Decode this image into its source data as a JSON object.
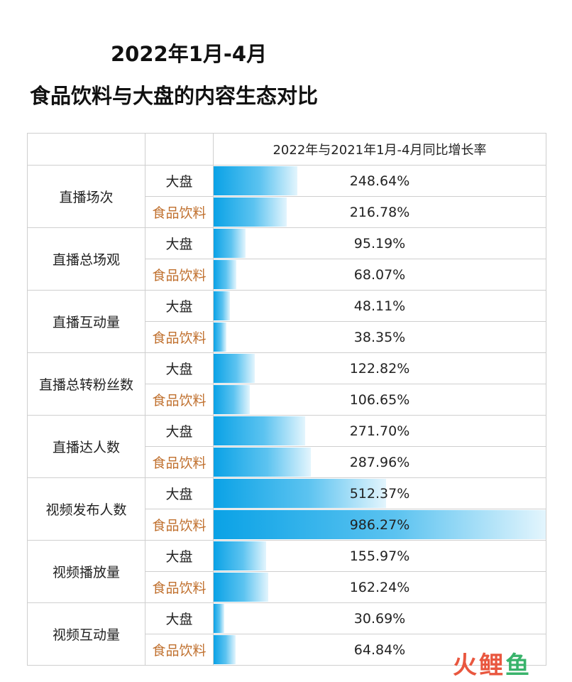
{
  "title_line1": "2022年1月-4月",
  "title_line2": "食品饮料与大盘的内容生态对比",
  "header": {
    "col1": "",
    "col2": "",
    "col3": "2022年与2021年1月-4月同比增长率"
  },
  "groups": [
    "大盘",
    "食品饮料"
  ],
  "colors": {
    "bar_start": "#0aa2e6",
    "bar_end": "#e3f5fd",
    "food_label": "#c0702e"
  },
  "chart_data": {
    "type": "table",
    "title": "2022年1月-4月 食品饮料与大盘的内容生态对比",
    "value_header": "2022年与2021年1月-4月同比增长率",
    "series_names": [
      "大盘",
      "食品饮料"
    ],
    "metrics": [
      {
        "name": "直播场次",
        "rows": [
          {
            "group": "大盘",
            "value": 248.64,
            "label": "248.64%"
          },
          {
            "group": "食品饮料",
            "value": 216.78,
            "label": "216.78%"
          }
        ]
      },
      {
        "name": "直播总场观",
        "rows": [
          {
            "group": "大盘",
            "value": 95.19,
            "label": "95.19%"
          },
          {
            "group": "食品饮料",
            "value": 68.07,
            "label": "68.07%"
          }
        ]
      },
      {
        "name": "直播互动量",
        "rows": [
          {
            "group": "大盘",
            "value": 48.11,
            "label": "48.11%"
          },
          {
            "group": "食品饮料",
            "value": 38.35,
            "label": "38.35%"
          }
        ]
      },
      {
        "name": "直播总转粉丝数",
        "rows": [
          {
            "group": "大盘",
            "value": 122.82,
            "label": "122.82%"
          },
          {
            "group": "食品饮料",
            "value": 106.65,
            "label": "106.65%"
          }
        ]
      },
      {
        "name": "直播达人数",
        "rows": [
          {
            "group": "大盘",
            "value": 271.7,
            "label": "271.70%"
          },
          {
            "group": "食品饮料",
            "value": 287.96,
            "label": "287.96%"
          }
        ]
      },
      {
        "name": "视频发布人数",
        "rows": [
          {
            "group": "大盘",
            "value": 512.37,
            "label": "512.37%"
          },
          {
            "group": "食品饮料",
            "value": 986.27,
            "label": "986.27%"
          }
        ]
      },
      {
        "name": "视频播放量",
        "rows": [
          {
            "group": "大盘",
            "value": 155.97,
            "label": "155.97%"
          },
          {
            "group": "食品饮料",
            "value": 162.24,
            "label": "162.24%"
          }
        ]
      },
      {
        "name": "视频互动量",
        "rows": [
          {
            "group": "大盘",
            "value": 30.69,
            "label": "30.69%"
          },
          {
            "group": "食品饮料",
            "value": 64.84,
            "label": "64.84%"
          }
        ]
      }
    ]
  },
  "watermark": {
    "char1": "火",
    "char2": "鲤",
    "char3": "鱼"
  }
}
